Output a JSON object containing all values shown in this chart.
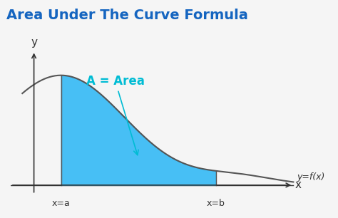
{
  "title": "Area Under The Curve Formula",
  "title_color": "#1565C0",
  "title_fontsize": 14,
  "bg_color": "#f5f5f5",
  "curve_color": "#555555",
  "fill_color": "#29B6F6",
  "fill_alpha": 0.85,
  "area_label": "A = Area",
  "area_label_color": "#00BCD4",
  "area_label_fontsize": 12,
  "func_label": "y=f(x)",
  "func_label_color": "#333333",
  "func_label_fontsize": 10,
  "x_label": "x",
  "y_label": "y",
  "xa_label": "x=a",
  "xb_label": "x=b",
  "axis_color": "#333333",
  "x_a": 1.5,
  "x_b": 5.5,
  "x_min": 0.5,
  "x_max": 7.5,
  "y_min": -0.3,
  "y_max": 2.2
}
